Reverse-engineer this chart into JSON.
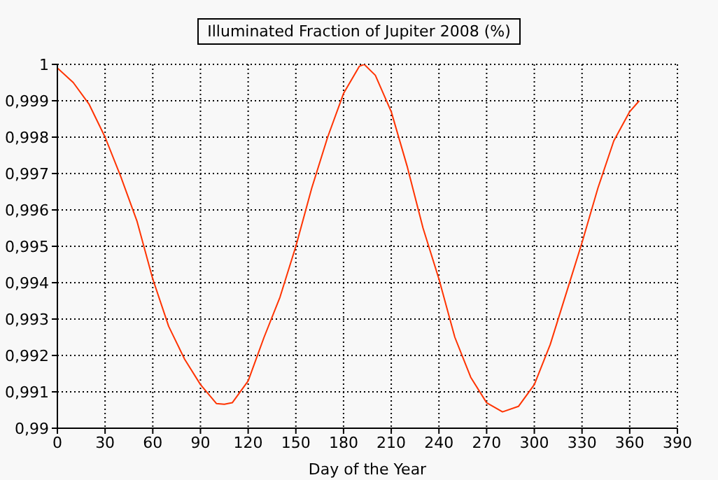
{
  "chart_data": {
    "type": "line",
    "title": "Illuminated Fraction of Jupiter 2008 (%)",
    "xlabel": "Day of the Year",
    "x": [
      0,
      10,
      20,
      30,
      40,
      50,
      60,
      70,
      80,
      90,
      100,
      105,
      110,
      120,
      130,
      140,
      150,
      160,
      170,
      180,
      190,
      193,
      200,
      210,
      220,
      230,
      240,
      250,
      260,
      270,
      280,
      290,
      300,
      310,
      320,
      330,
      340,
      350,
      360,
      366
    ],
    "series": [
      {
        "color": "#ff3300",
        "values": [
          0.9999,
          0.9995,
          0.9989,
          0.998,
          0.9969,
          0.9957,
          0.9941,
          0.9928,
          0.9919,
          0.9912,
          0.99068,
          0.99066,
          0.9907,
          0.9913,
          0.9925,
          0.9936,
          0.995,
          0.9966,
          0.998,
          0.9992,
          0.99995,
          1,
          0.9997,
          0.9987,
          0.9972,
          0.9955,
          0.9941,
          0.9925,
          0.9914,
          0.9907,
          0.99045,
          0.9906,
          0.9912,
          0.9923,
          0.9937,
          0.9951,
          0.9966,
          0.9979,
          0.9987,
          0.999
        ]
      }
    ],
    "xlim": [
      0,
      390
    ],
    "xticks": [
      0,
      30,
      60,
      90,
      120,
      150,
      180,
      210,
      240,
      270,
      300,
      330,
      360,
      390
    ],
    "ylim": [
      0.99,
      1
    ],
    "yticks": [
      {
        "value": 0.99,
        "label": "0,99"
      },
      {
        "value": 0.991,
        "label": "0,991"
      },
      {
        "value": 0.992,
        "label": "0,992"
      },
      {
        "value": 0.993,
        "label": "0,993"
      },
      {
        "value": 0.994,
        "label": "0,994"
      },
      {
        "value": 0.995,
        "label": "0,995"
      },
      {
        "value": 0.996,
        "label": "0,996"
      },
      {
        "value": 0.997,
        "label": "0,997"
      },
      {
        "value": 0.998,
        "label": "0,998"
      },
      {
        "value": 0.999,
        "label": "0,999"
      },
      {
        "value": 1,
        "label": "1"
      }
    ],
    "grid": true,
    "marker": "none",
    "line_style": "solid",
    "legend": false
  }
}
